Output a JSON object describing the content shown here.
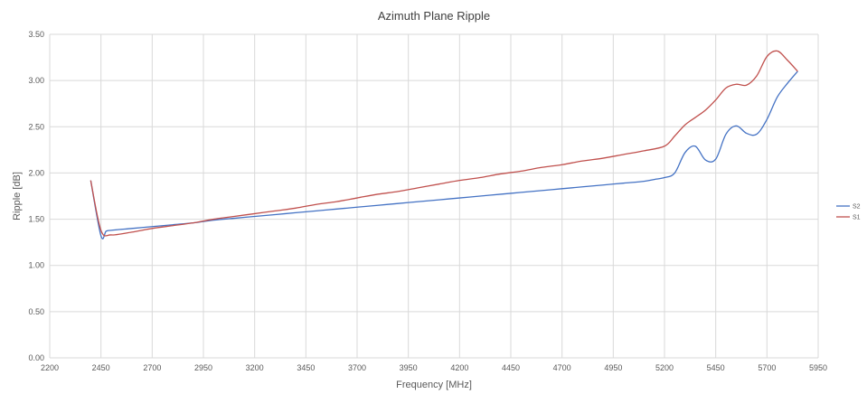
{
  "colors": {
    "S2": "#4472C4",
    "S1": "#C0504D",
    "grid": "#d9d9d9",
    "axis_text": "#595959"
  },
  "chart_data": {
    "type": "line",
    "title": "Azimuth Plane Ripple",
    "xlabel": "Frequency [MHz]",
    "ylabel": "Ripple [dB]",
    "xlim": [
      2200,
      5950
    ],
    "ylim": [
      0,
      3.5
    ],
    "xticks": [
      2200,
      2450,
      2700,
      2950,
      3200,
      3450,
      3700,
      3950,
      4200,
      4450,
      4700,
      4950,
      5200,
      5450,
      5700,
      5950
    ],
    "xtick_labels": [
      "2200",
      "2450",
      "2700",
      "2950",
      "3200",
      "3450",
      "3700",
      "3950",
      "4200",
      "4450",
      "4700",
      "4950",
      "5200",
      "5450",
      "5700",
      "5950"
    ],
    "yticks": [
      0,
      0.5,
      1,
      1.5,
      2,
      2.5,
      3,
      3.5
    ],
    "ytick_labels": [
      "0.00",
      "0.50",
      "1.00",
      "1.50",
      "2.00",
      "2.50",
      "3.00",
      "3.50"
    ],
    "grid": true,
    "legend_position": "right",
    "series": [
      {
        "name": "S2",
        "x": [
          2400,
          2450,
          2475,
          2500,
          2600,
          2700,
          2800,
          2900,
          3000,
          3100,
          3200,
          3300,
          3400,
          3500,
          3600,
          3700,
          3800,
          3900,
          4000,
          4100,
          4200,
          4300,
          4400,
          4500,
          4600,
          4700,
          4800,
          4900,
          5000,
          5100,
          5150,
          5200,
          5250,
          5300,
          5350,
          5400,
          5450,
          5500,
          5550,
          5600,
          5650,
          5700,
          5750,
          5800,
          5850
        ],
        "y": [
          1.92,
          1.32,
          1.37,
          1.38,
          1.4,
          1.42,
          1.44,
          1.46,
          1.49,
          1.51,
          1.53,
          1.55,
          1.57,
          1.59,
          1.61,
          1.63,
          1.65,
          1.67,
          1.69,
          1.71,
          1.73,
          1.75,
          1.77,
          1.79,
          1.81,
          1.83,
          1.85,
          1.87,
          1.89,
          1.91,
          1.93,
          1.95,
          2.0,
          2.22,
          2.29,
          2.14,
          2.15,
          2.42,
          2.51,
          2.43,
          2.42,
          2.58,
          2.82,
          2.97,
          3.1
        ]
      },
      {
        "name": "S1",
        "x": [
          2400,
          2450,
          2500,
          2600,
          2700,
          2800,
          2900,
          3000,
          3100,
          3200,
          3300,
          3400,
          3500,
          3600,
          3700,
          3800,
          3900,
          4000,
          4100,
          4200,
          4300,
          4400,
          4500,
          4600,
          4700,
          4800,
          4900,
          5000,
          5100,
          5200,
          5250,
          5300,
          5350,
          5400,
          5450,
          5500,
          5550,
          5600,
          5650,
          5700,
          5750,
          5800,
          5850
        ],
        "y": [
          1.92,
          1.38,
          1.33,
          1.36,
          1.4,
          1.43,
          1.46,
          1.5,
          1.53,
          1.56,
          1.59,
          1.62,
          1.66,
          1.69,
          1.73,
          1.77,
          1.8,
          1.84,
          1.88,
          1.92,
          1.95,
          1.99,
          2.02,
          2.06,
          2.09,
          2.13,
          2.16,
          2.2,
          2.24,
          2.29,
          2.4,
          2.52,
          2.6,
          2.68,
          2.79,
          2.92,
          2.96,
          2.95,
          3.05,
          3.26,
          3.32,
          3.22,
          3.1
        ]
      }
    ]
  }
}
